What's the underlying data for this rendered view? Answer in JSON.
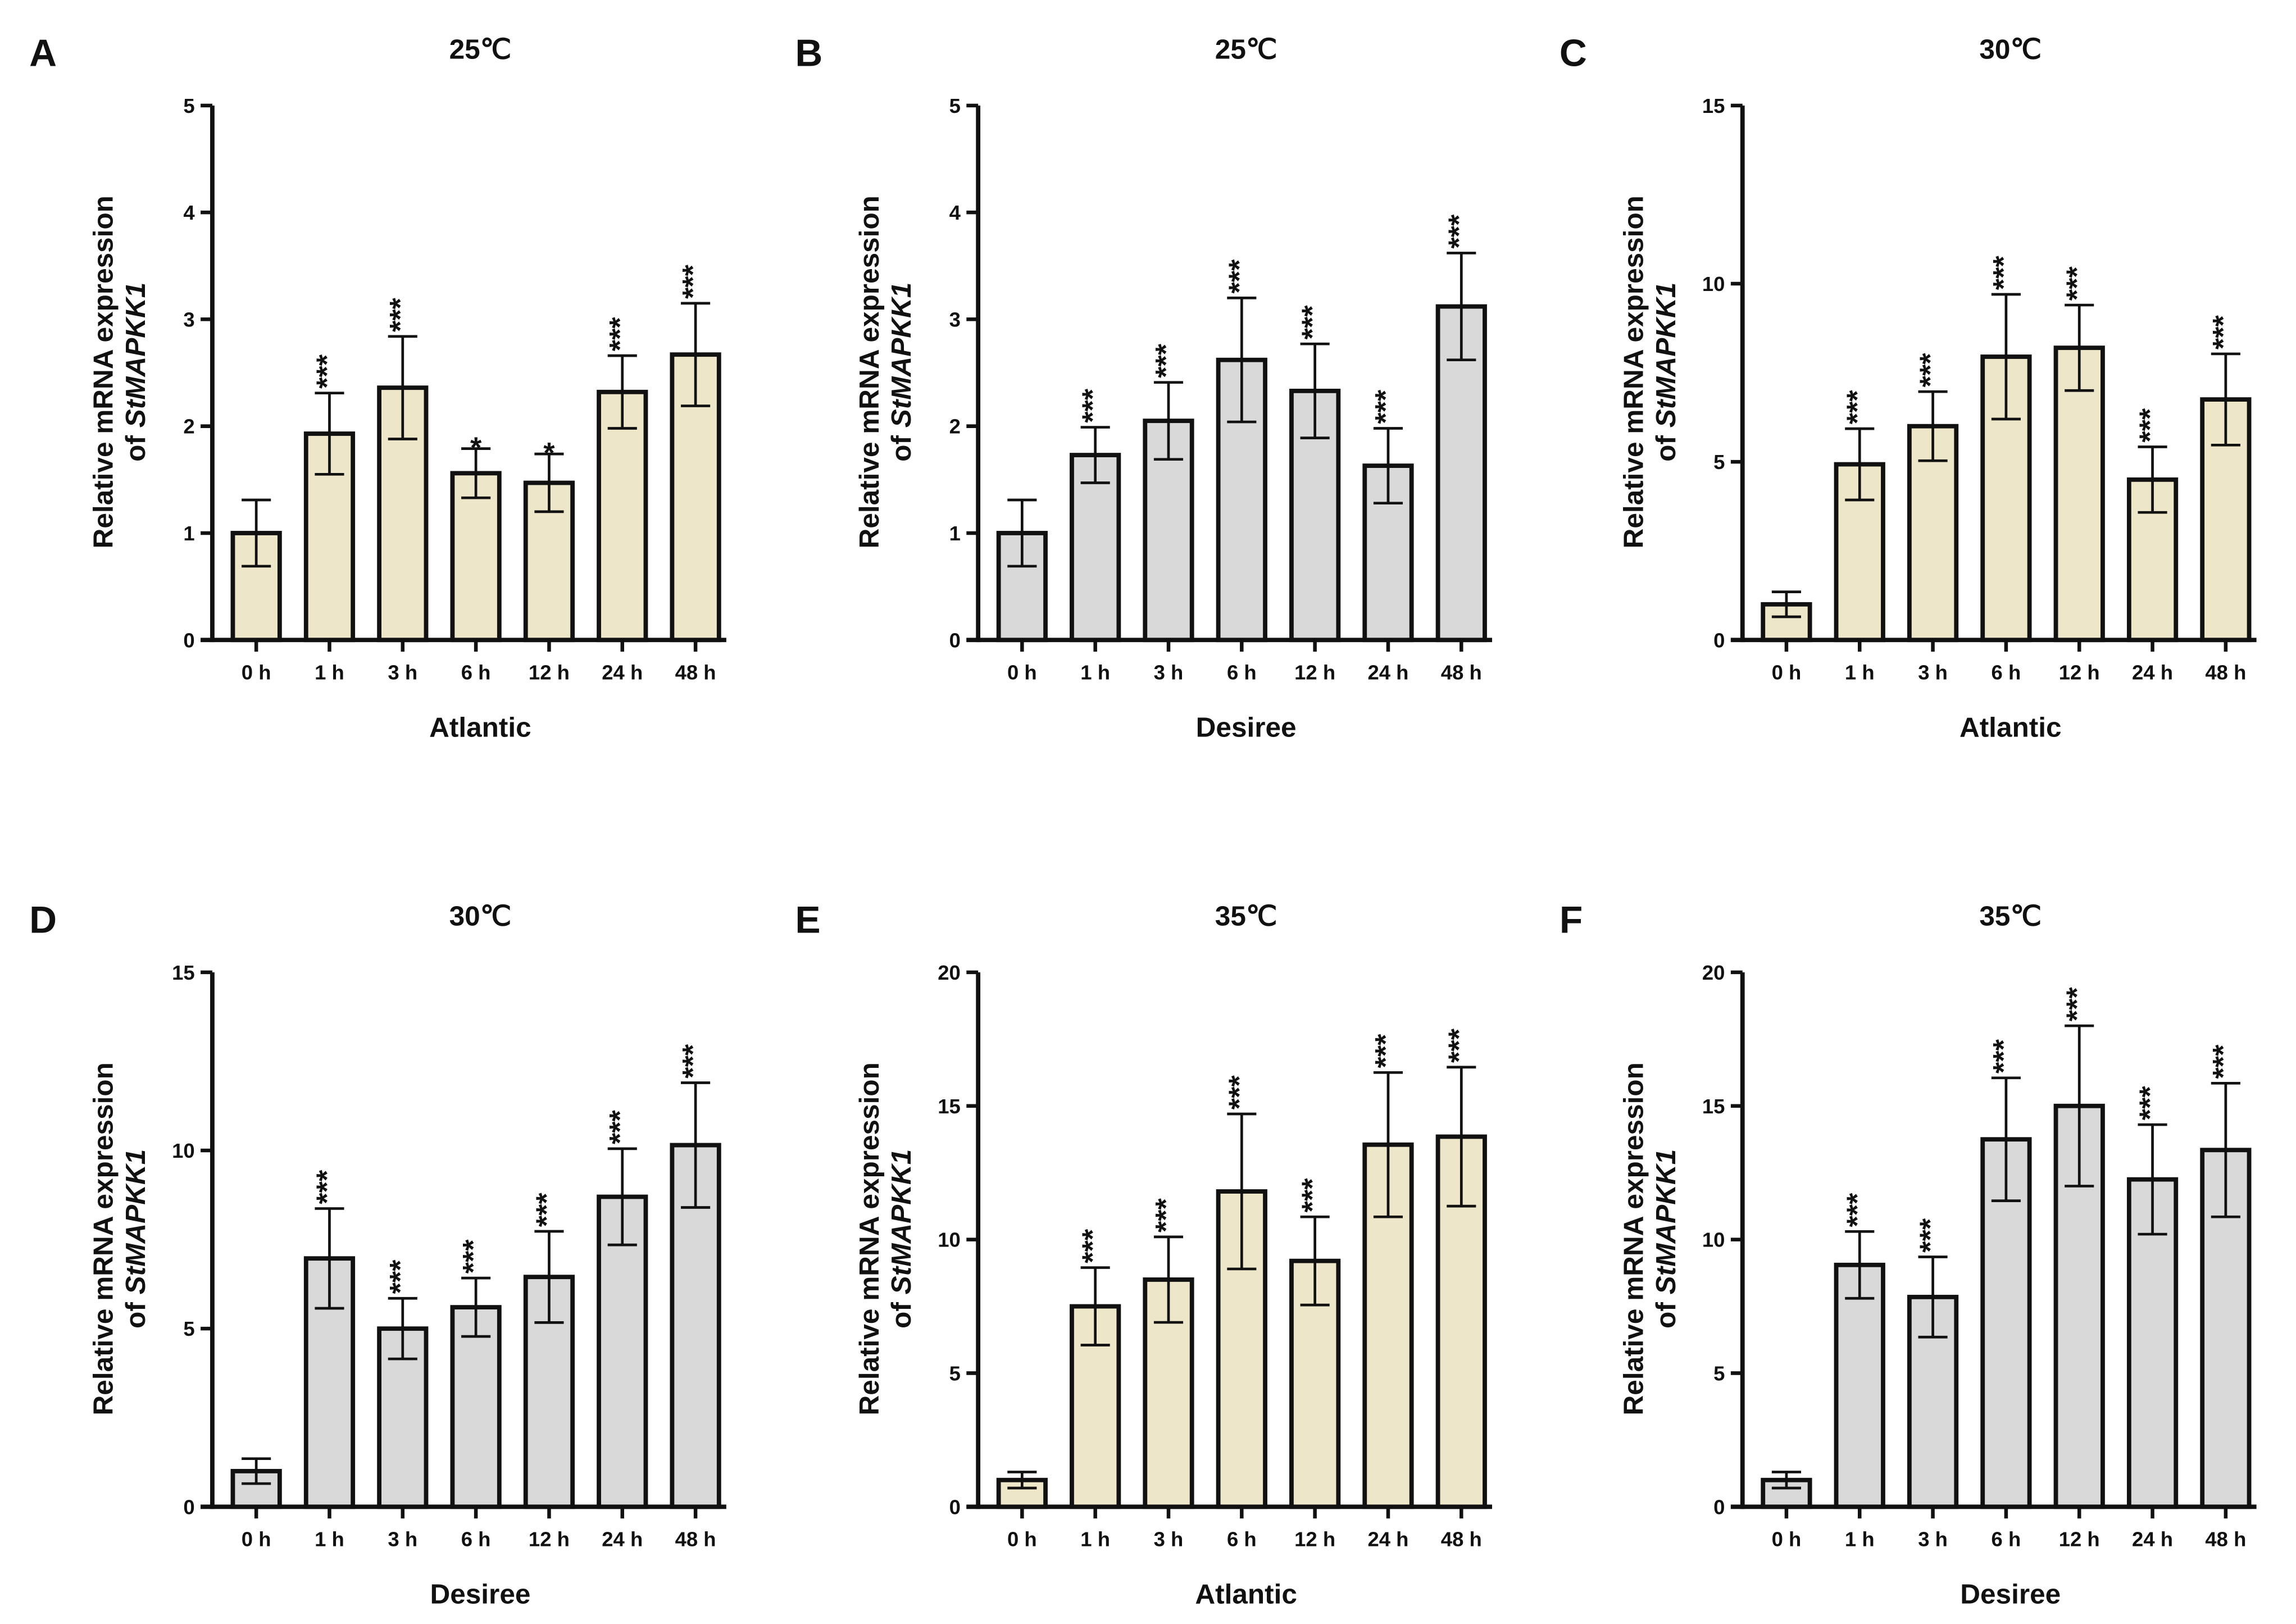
{
  "colors": {
    "atlantic": "#EEE6C9",
    "desiree": "#D9D9D9",
    "axis": "#111111"
  },
  "ylabel_line1": "Relative mRNA expression",
  "ylabel_line2_prefix": "of ",
  "ylabel_gene": "StMAPKK1",
  "chart_data": [
    {
      "type": "bar",
      "panel": "A",
      "title": "25℃",
      "xlabel": "Atlantic",
      "ylim": [
        0,
        5
      ],
      "yticks": [
        "0",
        "1",
        "2",
        "3",
        "4",
        "5"
      ],
      "fill": "atlantic",
      "categories": [
        "0 h",
        "1 h",
        "3 h",
        "6 h",
        "12 h",
        "24 h",
        "48 h"
      ],
      "values": [
        1.0,
        1.93,
        2.36,
        1.56,
        1.47,
        2.32,
        2.67
      ],
      "errors": [
        0.31,
        0.38,
        0.48,
        0.23,
        0.27,
        0.34,
        0.48
      ],
      "significance": [
        "",
        "***",
        "***",
        "*",
        "*",
        "***",
        "***"
      ]
    },
    {
      "type": "bar",
      "panel": "B",
      "title": "25℃",
      "xlabel": "Desiree",
      "ylim": [
        0,
        5
      ],
      "yticks": [
        "0",
        "1",
        "2",
        "3",
        "4",
        "5"
      ],
      "fill": "desiree",
      "categories": [
        "0 h",
        "1 h",
        "3 h",
        "6 h",
        "12 h",
        "24 h",
        "48 h"
      ],
      "values": [
        1.0,
        1.73,
        2.05,
        2.62,
        2.33,
        1.63,
        3.12
      ],
      "errors": [
        0.31,
        0.26,
        0.36,
        0.58,
        0.44,
        0.35,
        0.5
      ],
      "significance": [
        "",
        "***",
        "***",
        "***",
        "***",
        "***",
        "***"
      ]
    },
    {
      "type": "bar",
      "panel": "C",
      "title": "30℃",
      "xlabel": "Atlantic",
      "ylim": [
        0,
        15
      ],
      "yticks": [
        "0",
        "5",
        "10",
        "15"
      ],
      "fill": "atlantic",
      "categories": [
        "0 h",
        "1 h",
        "3 h",
        "6 h",
        "12 h",
        "24 h",
        "48 h"
      ],
      "values": [
        1.0,
        4.93,
        6.0,
        7.95,
        8.2,
        4.5,
        6.75
      ],
      "errors": [
        0.35,
        1.0,
        0.97,
        1.75,
        1.2,
        0.92,
        1.28
      ],
      "significance": [
        "",
        "***",
        "***",
        "***",
        "***",
        "***",
        "***"
      ]
    },
    {
      "type": "bar",
      "panel": "D",
      "title": "30℃",
      "xlabel": "Desiree",
      "ylim": [
        0,
        15
      ],
      "yticks": [
        "0",
        "5",
        "10",
        "15"
      ],
      "fill": "desiree",
      "categories": [
        "0 h",
        "1 h",
        "3 h",
        "6 h",
        "12 h",
        "24 h",
        "48 h"
      ],
      "values": [
        1.0,
        6.97,
        5.0,
        5.6,
        6.45,
        8.7,
        10.15
      ],
      "errors": [
        0.35,
        1.4,
        0.85,
        0.82,
        1.28,
        1.35,
        1.75
      ],
      "significance": [
        "",
        "***",
        "***",
        "***",
        "***",
        "***",
        "***"
      ]
    },
    {
      "type": "bar",
      "panel": "E",
      "title": "35℃",
      "xlabel": "Atlantic",
      "ylim": [
        0,
        20
      ],
      "yticks": [
        "0",
        "5",
        "10",
        "15",
        "20"
      ],
      "fill": "atlantic",
      "categories": [
        "0 h",
        "1 h",
        "3 h",
        "6 h",
        "12 h",
        "24 h",
        "48 h"
      ],
      "values": [
        1.0,
        7.5,
        8.5,
        11.8,
        9.2,
        13.55,
        13.85
      ],
      "errors": [
        0.3,
        1.45,
        1.6,
        2.9,
        1.65,
        2.7,
        2.6
      ],
      "significance": [
        "",
        "***",
        "***",
        "***",
        "***",
        "***",
        "***"
      ]
    },
    {
      "type": "bar",
      "panel": "F",
      "title": "35℃",
      "xlabel": "Desiree",
      "ylim": [
        0,
        20
      ],
      "yticks": [
        "0",
        "5",
        "10",
        "15",
        "20"
      ],
      "fill": "desiree",
      "categories": [
        "0 h",
        "1 h",
        "3 h",
        "6 h",
        "12 h",
        "24 h",
        "48 h"
      ],
      "values": [
        1.0,
        9.05,
        7.85,
        13.75,
        15.0,
        12.25,
        13.35
      ],
      "errors": [
        0.3,
        1.25,
        1.5,
        2.3,
        3.0,
        2.05,
        2.5
      ],
      "significance": [
        "",
        "***",
        "***",
        "***",
        "***",
        "***",
        "***"
      ]
    }
  ]
}
